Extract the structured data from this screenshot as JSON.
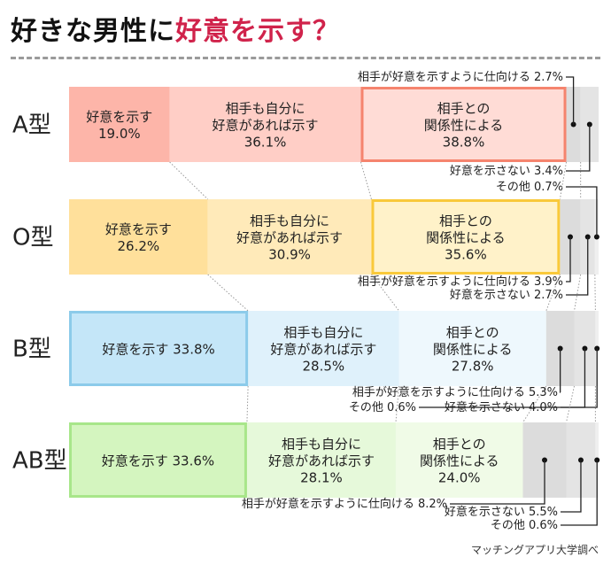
{
  "title": {
    "part1": "好きな男性に",
    "part2": "好意を示す？",
    "accent_color": "#d0234b"
  },
  "source": "マッチングアプリ大学調べ",
  "chart_data": {
    "type": "bar",
    "orientation": "horizontal",
    "stacked": "100%",
    "categories": [
      "A型",
      "O型",
      "B型",
      "AB型"
    ],
    "series": [
      {
        "name": "好意を示す",
        "values": [
          19.0,
          26.2,
          33.8,
          33.6
        ]
      },
      {
        "name": "相手も自分に好意があれば示す",
        "values": [
          36.1,
          30.9,
          28.5,
          28.1
        ]
      },
      {
        "name": "相手との関係性による",
        "values": [
          38.8,
          35.6,
          27.8,
          24.0
        ]
      },
      {
        "name": "相手が好意を示すように仕向ける",
        "values": [
          2.7,
          3.9,
          5.3,
          8.2
        ]
      },
      {
        "name": "好意を示さない",
        "values": [
          3.4,
          2.7,
          4.0,
          5.5
        ]
      },
      {
        "name": "その他",
        "values": [
          null,
          0.7,
          0.6,
          0.6
        ]
      }
    ],
    "highlighted": [
      "相手との関係性による",
      "相手との関係性による",
      "好意を示す",
      "好意を示す"
    ],
    "colors": {
      "A型": [
        "#fdb5a9",
        "#ffcec6",
        "#ffdcd6",
        "#f5846e"
      ],
      "O型": [
        "#ffe09b",
        "#ffeab9",
        "#fff2c9",
        "#f9c93a"
      ],
      "B型": [
        "#c4e6f8",
        "#dff1fb",
        "#eef8fd",
        "#8ccbea"
      ],
      "AB型": [
        "#d4f5bf",
        "#e6f9da",
        "#f0fbe7",
        "#a8e68a"
      ],
      "minor": [
        "#dcdcdc",
        "#e4e4e4",
        "#efefef"
      ]
    },
    "legend": "none",
    "grid": false
  }
}
